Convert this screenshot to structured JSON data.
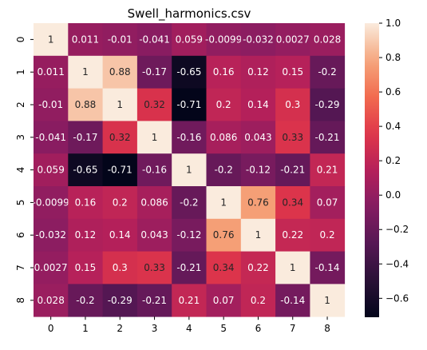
{
  "chart_data": {
    "type": "heatmap",
    "title": "Swell_harmonics.csv",
    "xlabel": "",
    "ylabel": "",
    "row_labels": [
      "0",
      "1",
      "2",
      "3",
      "4",
      "5",
      "6",
      "7",
      "8"
    ],
    "col_labels": [
      "0",
      "1",
      "2",
      "3",
      "4",
      "5",
      "6",
      "7",
      "8"
    ],
    "values": [
      [
        1,
        0.011,
        -0.01,
        -0.041,
        0.059,
        -0.0099,
        -0.032,
        0.0027,
        0.028
      ],
      [
        0.011,
        1,
        0.88,
        -0.17,
        -0.65,
        0.16,
        0.12,
        0.15,
        -0.2
      ],
      [
        -0.01,
        0.88,
        1,
        0.32,
        -0.71,
        0.2,
        0.14,
        0.3,
        -0.29
      ],
      [
        -0.041,
        -0.17,
        0.32,
        1,
        -0.16,
        0.086,
        0.043,
        0.33,
        -0.21
      ],
      [
        0.059,
        -0.65,
        -0.71,
        -0.16,
        1,
        -0.2,
        -0.12,
        -0.21,
        0.21
      ],
      [
        -0.0099,
        0.16,
        0.2,
        0.086,
        -0.2,
        1,
        0.76,
        0.34,
        0.07
      ],
      [
        -0.032,
        0.12,
        0.14,
        0.043,
        -0.12,
        0.76,
        1,
        0.22,
        0.2
      ],
      [
        0.0027,
        0.15,
        0.3,
        0.33,
        -0.21,
        0.34,
        0.22,
        1,
        -0.14
      ],
      [
        0.028,
        -0.2,
        -0.29,
        -0.21,
        0.21,
        0.07,
        0.2,
        -0.14,
        1
      ]
    ],
    "colormap": "rocket",
    "vmin": -0.71,
    "vmax": 1,
    "colorbar_ticks": [
      "1.0",
      "0.8",
      "0.6",
      "0.4",
      "0.2",
      "0.0",
      "−0.2",
      "−0.4",
      "−0.6"
    ],
    "colorbar_tick_values": [
      1.0,
      0.8,
      0.6,
      0.4,
      0.2,
      0.0,
      -0.2,
      -0.4,
      -0.6
    ],
    "grid": false,
    "legend": "colorbar-right"
  }
}
